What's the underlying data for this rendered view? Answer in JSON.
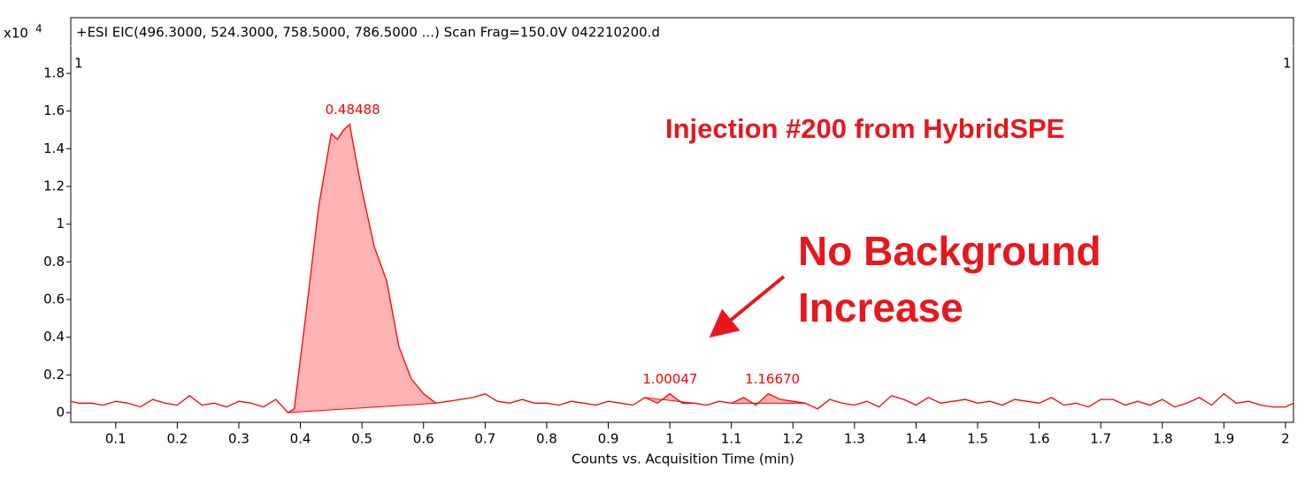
{
  "chart_data": {
    "type": "line",
    "title": "+ESI EIC(496.3000, 524.3000, 758.5000, 786.5000 ...) Scan Frag=150.0V 042210200.d",
    "y_multiplier": {
      "base": "x10",
      "exponent": "4"
    },
    "corner_labels": [
      "1",
      "1"
    ],
    "xlabel": "Counts vs. Acquisition Time (min)",
    "annotations": [
      "Injection #200 from HybridSPE",
      "No Background",
      "Increase"
    ],
    "xlim": [
      0.027,
      2.013
    ],
    "ylim": [
      0,
      1.88
    ],
    "xticks": [
      0.1,
      0.2,
      0.3,
      0.4,
      0.5,
      0.6,
      0.7,
      0.8,
      0.9,
      1,
      1.1,
      1.2,
      1.3,
      1.4,
      1.5,
      1.6,
      1.7,
      1.8,
      1.9,
      2
    ],
    "yticks": [
      0,
      0.2,
      0.4,
      0.6,
      0.8,
      1,
      1.2,
      1.4,
      1.6,
      1.8
    ],
    "x": [
      0.027,
      0.04,
      0.06,
      0.08,
      0.1,
      0.12,
      0.14,
      0.16,
      0.18,
      0.2,
      0.22,
      0.24,
      0.26,
      0.28,
      0.3,
      0.32,
      0.34,
      0.36,
      0.38,
      0.39,
      0.41,
      0.43,
      0.45,
      0.46,
      0.47,
      0.48,
      0.49,
      0.5,
      0.52,
      0.54,
      0.56,
      0.58,
      0.6,
      0.62,
      0.64,
      0.66,
      0.68,
      0.7,
      0.72,
      0.74,
      0.76,
      0.78,
      0.8,
      0.82,
      0.84,
      0.86,
      0.88,
      0.9,
      0.92,
      0.94,
      0.96,
      0.98,
      1.0,
      1.02,
      1.04,
      1.06,
      1.08,
      1.1,
      1.12,
      1.14,
      1.16,
      1.18,
      1.2,
      1.22,
      1.24,
      1.26,
      1.28,
      1.3,
      1.32,
      1.34,
      1.36,
      1.38,
      1.4,
      1.42,
      1.44,
      1.46,
      1.48,
      1.5,
      1.52,
      1.54,
      1.56,
      1.58,
      1.6,
      1.62,
      1.64,
      1.66,
      1.68,
      1.7,
      1.72,
      1.74,
      1.76,
      1.78,
      1.8,
      1.82,
      1.84,
      1.86,
      1.88,
      1.9,
      1.92,
      1.94,
      1.96,
      1.98,
      2.0,
      2.013
    ],
    "series": [
      {
        "color": "#ff0000",
        "values": [
          0.06,
          0.05,
          0.05,
          0.04,
          0.06,
          0.05,
          0.03,
          0.07,
          0.05,
          0.04,
          0.09,
          0.04,
          0.05,
          0.03,
          0.06,
          0.05,
          0.03,
          0.07,
          0.0,
          0.02,
          0.55,
          1.1,
          1.48,
          1.45,
          1.5,
          1.53,
          1.35,
          1.18,
          0.88,
          0.7,
          0.35,
          0.18,
          0.1,
          0.05,
          0.06,
          0.07,
          0.08,
          0.1,
          0.06,
          0.05,
          0.07,
          0.05,
          0.05,
          0.04,
          0.06,
          0.05,
          0.04,
          0.06,
          0.05,
          0.04,
          0.08,
          0.05,
          0.1,
          0.05,
          0.05,
          0.04,
          0.06,
          0.05,
          0.08,
          0.04,
          0.1,
          0.07,
          0.06,
          0.05,
          0.02,
          0.07,
          0.05,
          0.04,
          0.06,
          0.03,
          0.09,
          0.07,
          0.04,
          0.08,
          0.05,
          0.06,
          0.07,
          0.05,
          0.06,
          0.04,
          0.07,
          0.06,
          0.05,
          0.08,
          0.04,
          0.05,
          0.03,
          0.07,
          0.07,
          0.04,
          0.06,
          0.04,
          0.07,
          0.03,
          0.05,
          0.08,
          0.04,
          0.1,
          0.05,
          0.06,
          0.04,
          0.03,
          0.03,
          0.05
        ]
      }
    ],
    "peaks": {
      "values": [
        0.48488,
        1.00047,
        1.1667
      ],
      "value_labels": [
        "0.48488",
        "1.00047",
        "1.16670"
      ],
      "integration": [
        [
          0.38,
          0.62
        ],
        [
          0.96,
          1.04
        ],
        [
          1.1,
          1.22
        ]
      ],
      "fill": "#ffb3b3"
    }
  }
}
